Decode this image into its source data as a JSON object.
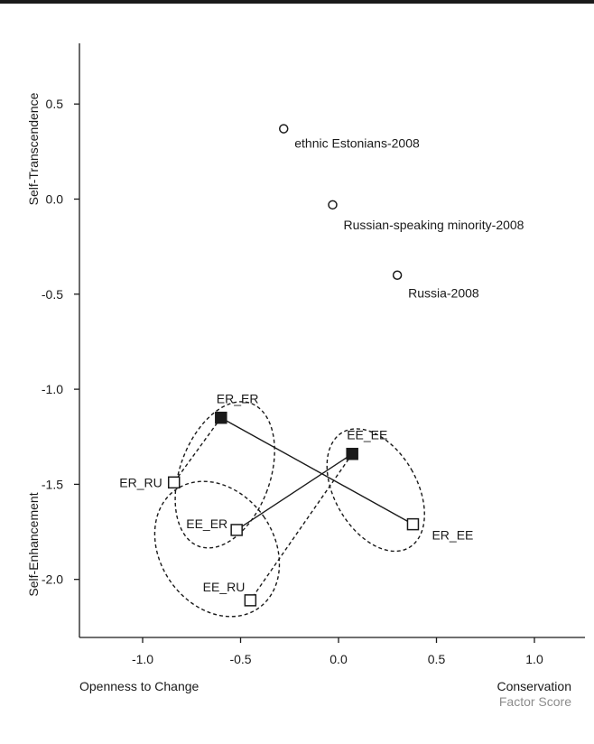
{
  "chart_data": {
    "type": "scatter",
    "x_ticks": [
      "-1.0",
      "-0.5",
      "0.0",
      "0.5",
      "1.0"
    ],
    "y_ticks": [
      "0.5",
      "0.0",
      "-0.5",
      "-1.0",
      "-1.5",
      "-2.0"
    ],
    "xlim": [
      -1.35,
      1.35
    ],
    "ylim": [
      -2.32,
      0.78
    ],
    "x_label_left": "Openness to Change",
    "x_label_right": "Conservation",
    "x_label_sub": "Factor Score",
    "y_label_top": "Self-Transcendence",
    "y_label_bottom": "Self-Enhancement",
    "grid": false,
    "colors": {
      "ink": "#1a1a1a",
      "muted": "#8c8c8c"
    },
    "reference_points": [
      {
        "label": "ethnic Estonians-2008",
        "x": -0.28,
        "y": 0.37,
        "marker": "circle-open"
      },
      {
        "label": "Russian-speaking minority-2008",
        "x": -0.03,
        "y": -0.03,
        "marker": "circle-open"
      },
      {
        "label": "Russia-2008",
        "x": 0.3,
        "y": -0.4,
        "marker": "circle-open"
      }
    ],
    "points": [
      {
        "label": "ER_ER",
        "x": -0.6,
        "y": -1.15,
        "marker": "square-filled"
      },
      {
        "label": "EE_EE",
        "x": 0.07,
        "y": -1.34,
        "marker": "square-filled"
      },
      {
        "label": "ER_RU",
        "x": -0.84,
        "y": -1.49,
        "marker": "square-open"
      },
      {
        "label": "EE_ER",
        "x": -0.52,
        "y": -1.74,
        "marker": "square-open"
      },
      {
        "label": "ER_EE",
        "x": 0.38,
        "y": -1.71,
        "marker": "square-open"
      },
      {
        "label": "EE_RU",
        "x": -0.45,
        "y": -2.11,
        "marker": "square-open"
      }
    ],
    "solid_links": [
      [
        "ER_ER",
        "ER_EE"
      ],
      [
        "EE_ER",
        "EE_EE"
      ]
    ],
    "dashed_links": [
      [
        "ER_ER",
        "ER_RU"
      ],
      [
        "EE_EE",
        "EE_RU"
      ]
    ],
    "ellipses": [
      {
        "cx": -0.58,
        "cy": -1.45,
        "rx": 0.23,
        "ry": 0.4,
        "angle": 20
      },
      {
        "cx": 0.19,
        "cy": -1.53,
        "rx": 0.21,
        "ry": 0.35,
        "angle": -30
      },
      {
        "cx": -0.62,
        "cy": -1.84,
        "rx": 0.29,
        "ry": 0.38,
        "angle": -35
      }
    ]
  }
}
